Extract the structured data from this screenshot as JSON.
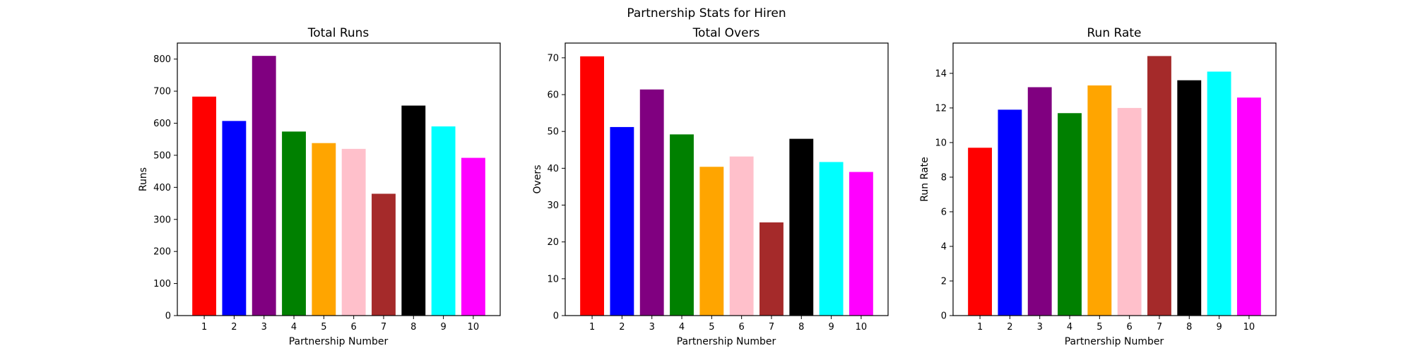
{
  "figure": {
    "title": "Partnership Stats for Hiren"
  },
  "chart_data": [
    {
      "type": "bar",
      "title": "Total Runs",
      "xlabel": "Partnership Number",
      "ylabel": "Runs",
      "categories": [
        "1",
        "2",
        "3",
        "4",
        "5",
        "6",
        "7",
        "8",
        "9",
        "10"
      ],
      "values": [
        683,
        607,
        810,
        574,
        538,
        520,
        380,
        655,
        590,
        492
      ],
      "colors": [
        "#ff0000",
        "#0000ff",
        "#800080",
        "#008000",
        "#ffa500",
        "#ffc0cb",
        "#a52a2a",
        "#000000",
        "#00ffff",
        "#ff00ff"
      ],
      "ylim": [
        0,
        850
      ],
      "yticks": [
        0,
        100,
        200,
        300,
        400,
        500,
        600,
        700,
        800
      ],
      "grid": false
    },
    {
      "type": "bar",
      "title": "Total Overs",
      "xlabel": "Partnership Number",
      "ylabel": "Overs",
      "categories": [
        "1",
        "2",
        "3",
        "4",
        "5",
        "6",
        "7",
        "8",
        "9",
        "10"
      ],
      "values": [
        70.4,
        51.2,
        61.4,
        49.2,
        40.4,
        43.2,
        25.3,
        48.0,
        41.7,
        39.0
      ],
      "colors": [
        "#ff0000",
        "#0000ff",
        "#800080",
        "#008000",
        "#ffa500",
        "#ffc0cb",
        "#a52a2a",
        "#000000",
        "#00ffff",
        "#ff00ff"
      ],
      "ylim": [
        0,
        74
      ],
      "yticks": [
        0,
        10,
        20,
        30,
        40,
        50,
        60,
        70
      ],
      "grid": false
    },
    {
      "type": "bar",
      "title": "Run Rate",
      "xlabel": "Partnership Number",
      "ylabel": "Run Rate",
      "categories": [
        "1",
        "2",
        "3",
        "4",
        "5",
        "6",
        "7",
        "8",
        "9",
        "10"
      ],
      "values": [
        9.7,
        11.9,
        13.2,
        11.7,
        13.3,
        12.0,
        15.0,
        13.6,
        14.1,
        12.6
      ],
      "colors": [
        "#ff0000",
        "#0000ff",
        "#800080",
        "#008000",
        "#ffa500",
        "#ffc0cb",
        "#a52a2a",
        "#000000",
        "#00ffff",
        "#ff00ff"
      ],
      "ylim": [
        0,
        15.75
      ],
      "yticks": [
        0,
        2,
        4,
        6,
        8,
        10,
        12,
        14
      ],
      "grid": false
    }
  ]
}
